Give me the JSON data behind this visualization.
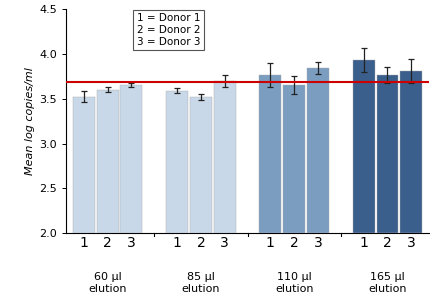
{
  "groups": [
    "60 µl\nelution",
    "85 µl\nelution",
    "110 µl\nelution",
    "165 µl\nelution"
  ],
  "donors": [
    "1",
    "2",
    "3"
  ],
  "bar_values": [
    [
      3.52,
      3.6,
      3.65
    ],
    [
      3.59,
      3.52,
      3.7
    ],
    [
      3.76,
      3.65,
      3.84
    ],
    [
      3.93,
      3.76,
      3.81
    ]
  ],
  "bar_errors": [
    [
      0.06,
      0.03,
      0.025
    ],
    [
      0.03,
      0.035,
      0.065
    ],
    [
      0.135,
      0.1,
      0.065
    ],
    [
      0.13,
      0.09,
      0.13
    ]
  ],
  "bar_colors": [
    [
      "#c8d8e8",
      "#c8d8e8",
      "#c8d8e8"
    ],
    [
      "#c8d8e8",
      "#c8d8e8",
      "#c8d8e8"
    ],
    [
      "#7b9dc0",
      "#7b9dc0",
      "#7b9dc0"
    ],
    [
      "#3b5f8c",
      "#3b5f8c",
      "#3b5f8c"
    ]
  ],
  "red_line_y": 3.69,
  "ylim": [
    2.0,
    4.5
  ],
  "yticks": [
    2.0,
    2.5,
    3.0,
    3.5,
    4.0,
    4.5
  ],
  "ylabel": "Mean log copies/ml",
  "legend_labels": [
    "1 = Donor 1",
    "2 = Donor 2",
    "3 = Donor 3"
  ]
}
